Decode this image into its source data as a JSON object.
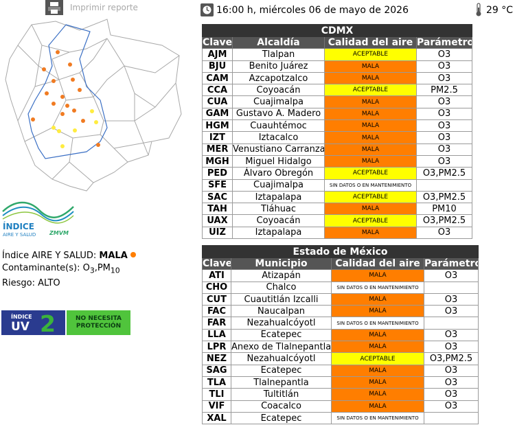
{
  "print": {
    "label": "Imprimir reporte",
    "icon": "printer-icon"
  },
  "header": {
    "datetime": "16:00 h, miércoles 06 de mayo de 2026",
    "clock_icon": "clock-icon",
    "temperature": "29 °C",
    "thermometer_icon": "thermometer-icon"
  },
  "logo": {
    "line1": "ÍNDICE",
    "line2": "AIRE Y SALUD",
    "brand": "ZMVM"
  },
  "indice": {
    "label": "Índice AIRE Y SALUD: ",
    "value": "MALA",
    "value_color": "#ff7e00",
    "contaminante_label": "Contaminante(s): ",
    "contaminante_o3": "O",
    "o3_sub": "3",
    "contaminante_sep": ",PM",
    "pm_sub": "10",
    "riesgo": "Riesgo: ALTO"
  },
  "uv": {
    "small": "ÍNDICE",
    "big": "UV",
    "value": "2",
    "message_line1": "NO NECESITA",
    "message_line2": "PROTECCIÓN"
  },
  "colors": {
    "mala": "#ff7e00",
    "aceptable": "#ffff00",
    "header_dark": "#333333",
    "uv_blue": "#2a3b8f",
    "uv_green": "#50c43c"
  },
  "cdmx": {
    "title": "CDMX",
    "headers": [
      "Clave",
      "Alcaldía",
      "Calidad del aire",
      "Parámetro"
    ],
    "rows": [
      {
        "clave": "AJM",
        "nombre": "Tlalpan",
        "calidad": "ACEPTABLE",
        "parametro": "O3"
      },
      {
        "clave": "BJU",
        "nombre": "Benito Juárez",
        "calidad": "MALA",
        "parametro": "O3"
      },
      {
        "clave": "CAM",
        "nombre": "Azcapotzalco",
        "calidad": "MALA",
        "parametro": "O3"
      },
      {
        "clave": "CCA",
        "nombre": "Coyoacán",
        "calidad": "ACEPTABLE",
        "parametro": "PM2.5"
      },
      {
        "clave": "CUA",
        "nombre": "Cuajimalpa",
        "calidad": "MALA",
        "parametro": "O3"
      },
      {
        "clave": "GAM",
        "nombre": "Gustavo A. Madero",
        "calidad": "MALA",
        "parametro": "O3"
      },
      {
        "clave": "HGM",
        "nombre": "Cuauhtémoc",
        "calidad": "MALA",
        "parametro": "O3"
      },
      {
        "clave": "IZT",
        "nombre": "Iztacalco",
        "calidad": "MALA",
        "parametro": "O3"
      },
      {
        "clave": "MER",
        "nombre": "Venustiano Carranza",
        "calidad": "MALA",
        "parametro": "O3"
      },
      {
        "clave": "MGH",
        "nombre": "Miguel Hidalgo",
        "calidad": "MALA",
        "parametro": "O3"
      },
      {
        "clave": "PED",
        "nombre": "Álvaro Obregón",
        "calidad": "ACEPTABLE",
        "parametro": "O3,PM2.5"
      },
      {
        "clave": "SFE",
        "nombre": "Cuajimalpa",
        "calidad": "SIN DATOS O EN MANTENIMIENTO",
        "parametro": ""
      },
      {
        "clave": "SAC",
        "nombre": "Iztapalapa",
        "calidad": "ACEPTABLE",
        "parametro": "O3,PM2.5"
      },
      {
        "clave": "TAH",
        "nombre": "Tláhuac",
        "calidad": "MALA",
        "parametro": "PM10"
      },
      {
        "clave": "UAX",
        "nombre": "Coyoacán",
        "calidad": "ACEPTABLE",
        "parametro": "O3,PM2.5"
      },
      {
        "clave": "UIZ",
        "nombre": "Iztapalapa",
        "calidad": "MALA",
        "parametro": "O3"
      }
    ]
  },
  "edomex": {
    "title": "Estado de México",
    "headers": [
      "Clave",
      "Municipio",
      "Calidad del aire",
      "Parámetro"
    ],
    "rows": [
      {
        "clave": "ATI",
        "nombre": "Atizapán",
        "calidad": "MALA",
        "parametro": "O3"
      },
      {
        "clave": "CHO",
        "nombre": "Chalco",
        "calidad": "SIN DATOS O EN MANTENIMIENTO",
        "parametro": ""
      },
      {
        "clave": "CUT",
        "nombre": "Cuautitlán Izcalli",
        "calidad": "MALA",
        "parametro": "O3"
      },
      {
        "clave": "FAC",
        "nombre": "Naucalpan",
        "calidad": "MALA",
        "parametro": "O3"
      },
      {
        "clave": "FAR",
        "nombre": "Nezahualcóyotl",
        "calidad": "SIN DATOS O EN MANTENIMIENTO",
        "parametro": ""
      },
      {
        "clave": "LLA",
        "nombre": "Ecatepec",
        "calidad": "MALA",
        "parametro": "O3"
      },
      {
        "clave": "LPR",
        "nombre": "Anexo de Tlalnepantla",
        "calidad": "MALA",
        "parametro": "O3"
      },
      {
        "clave": "NEZ",
        "nombre": "Nezahualcóyotl",
        "calidad": "ACEPTABLE",
        "parametro": "O3,PM2.5"
      },
      {
        "clave": "SAG",
        "nombre": "Ecatepec",
        "calidad": "MALA",
        "parametro": "O3"
      },
      {
        "clave": "TLA",
        "nombre": "Tlalnepantla",
        "calidad": "MALA",
        "parametro": "O3"
      },
      {
        "clave": "TLI",
        "nombre": "Tultitlán",
        "calidad": "MALA",
        "parametro": "O3"
      },
      {
        "clave": "VIF",
        "nombre": "Coacalco",
        "calidad": "MALA",
        "parametro": "O3"
      },
      {
        "clave": "XAL",
        "nombre": "Ecatepec",
        "calidad": "SIN DATOS O EN MANTENIMIENTO",
        "parametro": ""
      }
    ]
  }
}
